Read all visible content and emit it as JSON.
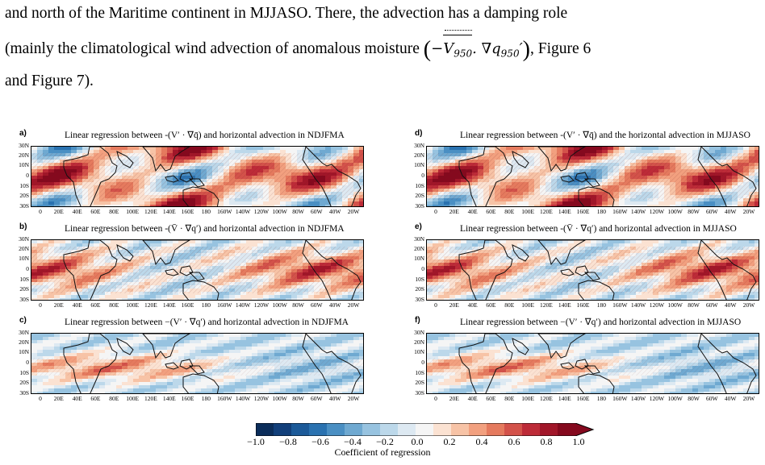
{
  "paragraph": {
    "line1": "and north of the Maritime continent in MJJASO. There, the advection has a damping role",
    "line2_pre": "(mainly the climatological wind advection of anomalous moisture ",
    "line2_math_minus": "−",
    "line2_math_v": "V",
    "line2_math_sub": "950",
    "line2_math_rest": ". ∇q",
    "line2_math_sub2": "950",
    "line2_math_prime": "′",
    "line2_post": ", Figure 6",
    "line3": "and Figure 7)."
  },
  "figure": {
    "lat_labels": [
      "30N",
      "20N",
      "10N",
      "0",
      "10S",
      "20S",
      "30S"
    ],
    "lon_labels": [
      "0",
      "20E",
      "40E",
      "60E",
      "80E",
      "100E",
      "120E",
      "140E",
      "160E",
      "180",
      "160W",
      "140W",
      "120W",
      "100W",
      "80W",
      "60W",
      "40W",
      "20W"
    ],
    "panels": [
      {
        "letter": "a)",
        "title": "Linear regression between -(V′ · ∇q̄) and horizontal advection in NDJFMA",
        "pattern": 0
      },
      {
        "letter": "d)",
        "title": "Linear regression between -(V′ · ∇q̄) and the horizontal advection in MJJASO",
        "pattern": 0
      },
      {
        "letter": "b)",
        "title": "Linear regression between -(V̄ · ∇q′) and horizontal advection in NDJFMA",
        "pattern": 1
      },
      {
        "letter": "e)",
        "title": "Linear regression between -(V̄ · ∇q′) and horizontal advection in MJJASO",
        "pattern": 1
      },
      {
        "letter": "c)",
        "title": "Linear regression between −(V′ · ∇q′) and horizontal advection in NDJFMA",
        "pattern": 2
      },
      {
        "letter": "f)",
        "title": "Linear regression between −(V′ · ∇q′) and horizontal advection in MJJASO",
        "pattern": 2
      }
    ],
    "colorbar": {
      "label": "Coefficient of regression",
      "ticks": [
        "−1.0",
        "−0.8",
        "−0.6",
        "−0.4",
        "−0.2",
        "0.0",
        "0.2",
        "0.4",
        "0.6",
        "0.8",
        "1.0"
      ],
      "colors": [
        "#0b2d5a",
        "#123f7a",
        "#1c5a99",
        "#2a72b0",
        "#4a8fc3",
        "#6fa9d1",
        "#97c3e0",
        "#bcd8ea",
        "#dde9f2",
        "#f5f5f5",
        "#fbe2d2",
        "#f7c3a6",
        "#f2a07f",
        "#e57a5e",
        "#d3524a",
        "#bd2b38",
        "#a11629",
        "#85091e"
      ]
    }
  }
}
